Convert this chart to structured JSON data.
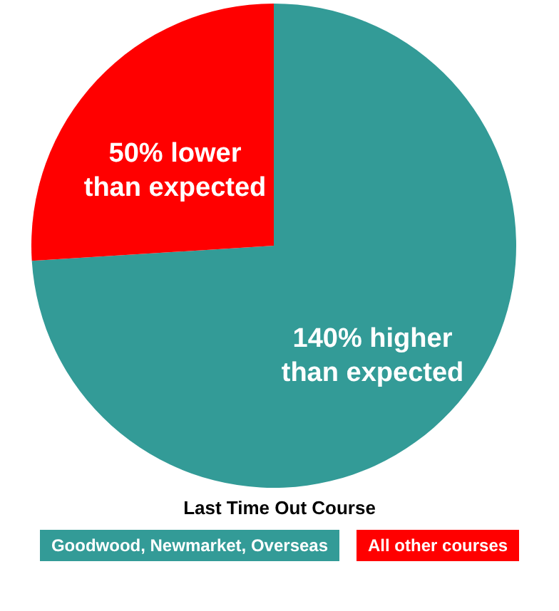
{
  "chart_data": {
    "type": "pie",
    "legend_title": "Last Time Out Course",
    "legend": "bottom",
    "categories": [
      "Goodwood, Newmarket, Overseas",
      "All other courses"
    ],
    "values": [
      74,
      26
    ],
    "colors": [
      "#339b97",
      "#ff0000"
    ],
    "annotations": [
      "140% higher than expected",
      "50% lower than expected"
    ]
  }
}
